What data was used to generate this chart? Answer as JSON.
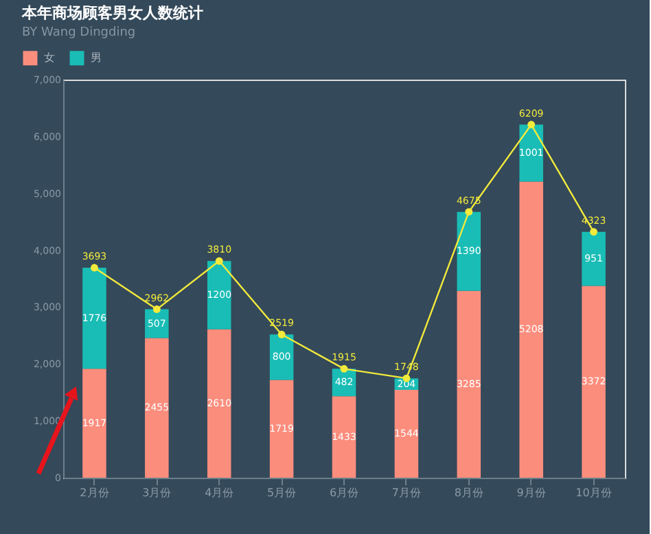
{
  "chart_data": {
    "type": "bar",
    "title": "本年商场顾客男女人数统计",
    "subtitle": "BY Wang Dingding",
    "categories": [
      "2月份",
      "3月份",
      "4月份",
      "5月份",
      "6月份",
      "7月份",
      "8月份",
      "9月份",
      "10月份"
    ],
    "stacked": true,
    "series": [
      {
        "name": "女",
        "color": "#fb8d7d",
        "values": [
          1917,
          2455,
          2610,
          1719,
          1433,
          1544,
          3285,
          5208,
          3372
        ]
      },
      {
        "name": "男",
        "color": "#19bdb5",
        "values": [
          1776,
          507,
          1200,
          800,
          482,
          204,
          1390,
          1001,
          951
        ]
      },
      {
        "type": "line",
        "color": "#f2ea3c",
        "values": [
          3693,
          2962,
          3810,
          2519,
          1915,
          1748,
          4675,
          6209,
          4323
        ]
      }
    ],
    "ylim": [
      0,
      7000
    ],
    "yticks": [
      0,
      {
        "value": 1000,
        "label": "1,000"
      },
      {
        "value": 2000,
        "label": "2,000"
      },
      {
        "value": 3000,
        "label": "3,000"
      },
      {
        "value": 4000,
        "label": "4,000"
      },
      {
        "value": 5000,
        "label": "5,000"
      },
      {
        "value": 6000,
        "label": "6,000"
      },
      {
        "value": 7000,
        "label": "7,000"
      }
    ],
    "grid": false,
    "legend": "top left",
    "marker": "circle",
    "data_labels": true
  }
}
